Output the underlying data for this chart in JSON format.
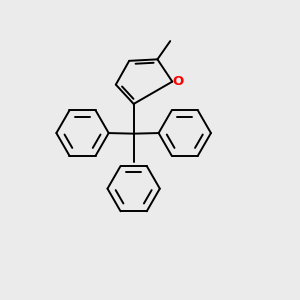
{
  "background_color": "#ebebeb",
  "line_color": "#000000",
  "oxygen_color": "#ff0000",
  "line_width": 1.4,
  "figsize": [
    3.0,
    3.0
  ],
  "dpi": 100,
  "xlim": [
    0,
    10
  ],
  "ylim": [
    0,
    10
  ]
}
